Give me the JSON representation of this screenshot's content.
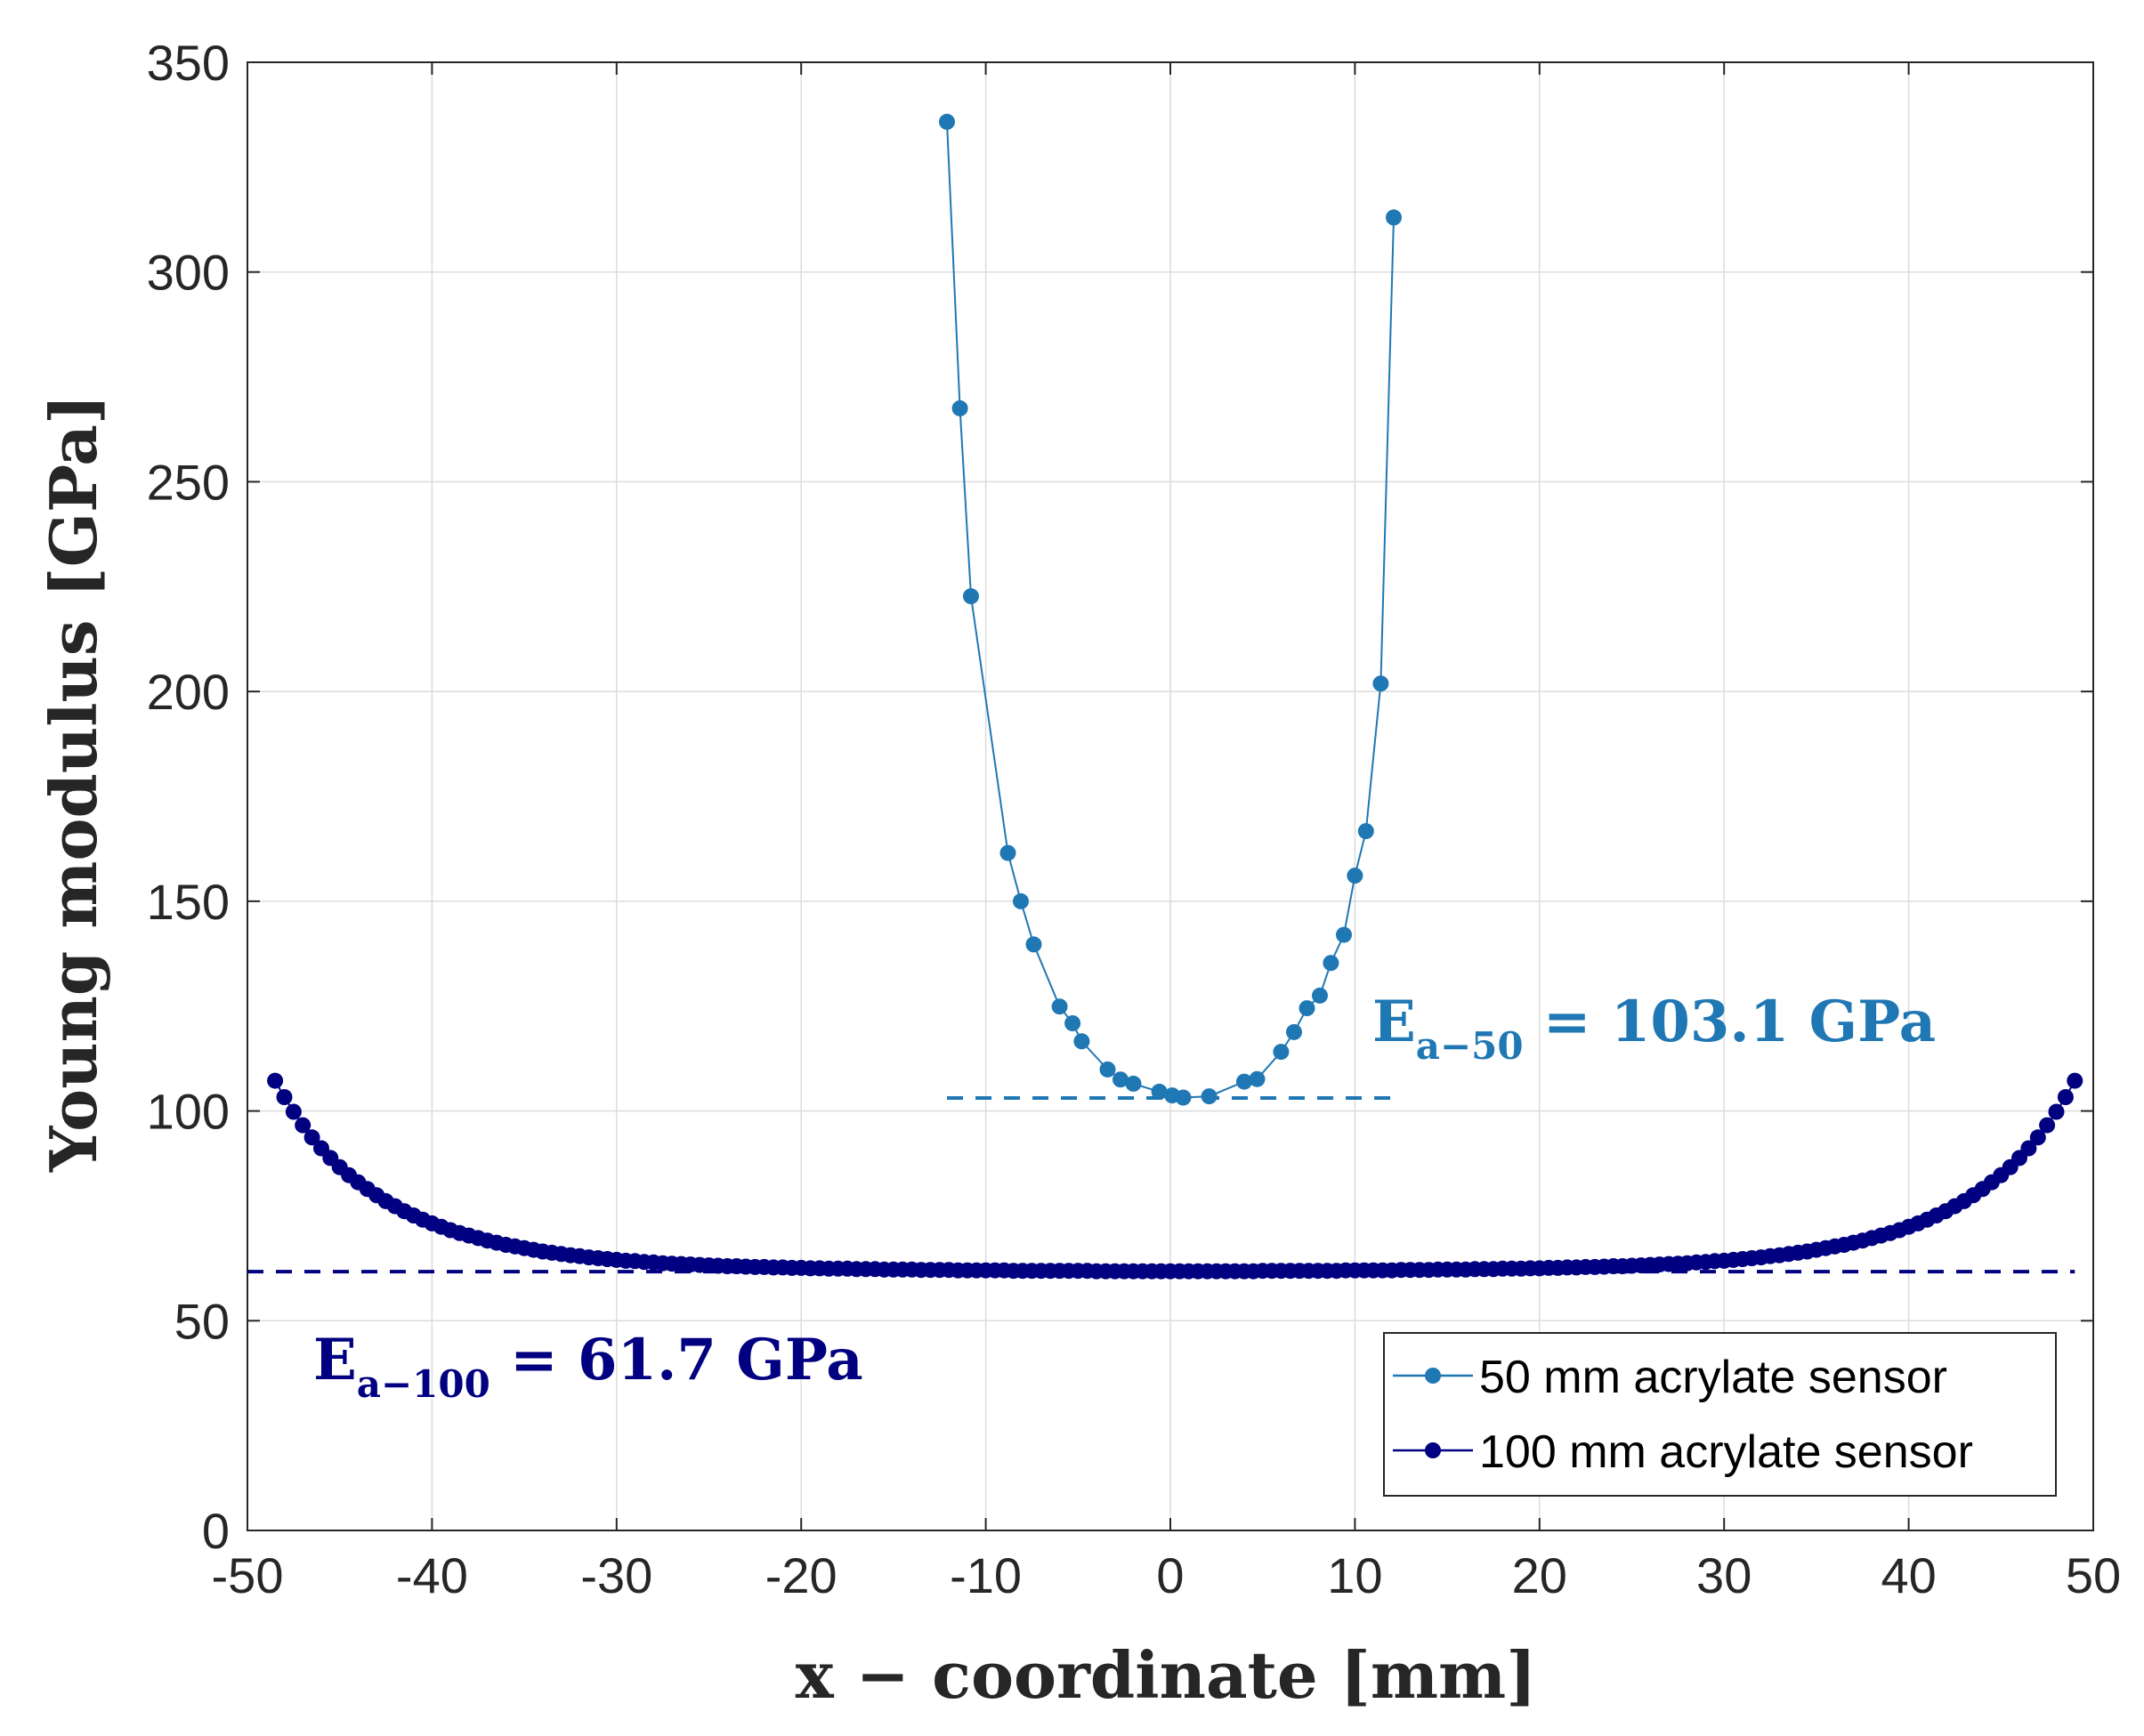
{
  "chart_data": {
    "type": "line",
    "title": "",
    "xlabel": "x − coordinate [mm]",
    "ylabel": "Young modulus [GPa]",
    "xlim": [
      -50,
      50
    ],
    "ylim": [
      0,
      350
    ],
    "xticks": [
      -50,
      -40,
      -30,
      -20,
      -10,
      0,
      10,
      20,
      30,
      40,
      50
    ],
    "yticks": [
      0,
      50,
      100,
      150,
      200,
      250,
      300,
      350
    ],
    "xtick_labels": [
      "-50",
      "-40",
      "-30",
      "-20",
      "-10",
      "0",
      "10",
      "20",
      "30",
      "40",
      "50"
    ],
    "ytick_labels": [
      "0",
      "50",
      "100",
      "150",
      "200",
      "250",
      "300",
      "350"
    ],
    "grid": true,
    "legend_position": "bottom-right",
    "series": [
      {
        "name": "50 mm acrylate sensor",
        "color": "#1f77b4",
        "x": [
          -12.1,
          -11.4,
          -10.8,
          -8.8,
          -8.1,
          -7.4,
          -6.0,
          -5.3,
          -4.8,
          -3.4,
          -2.7,
          -2.0,
          -0.6,
          0.1,
          0.7,
          2.1,
          4.0,
          4.7,
          6.0,
          6.7,
          7.4,
          8.1,
          8.7,
          9.4,
          10.0,
          10.6,
          11.4,
          12.1
        ],
        "y": [
          335.8,
          267.5,
          222.7,
          161.5,
          150.0,
          139.7,
          124.9,
          120.9,
          116.6,
          109.9,
          107.5,
          106.5,
          104.6,
          103.7,
          103.2,
          103.5,
          107.0,
          107.6,
          114.1,
          118.8,
          124.5,
          127.5,
          135.3,
          142.0,
          156.1,
          166.7,
          201.9,
          313.0
        ]
      },
      {
        "name": "100 mm acrylate sensor",
        "color": "#000080",
        "x": [
          -48.5,
          -48.0,
          -47.5,
          -47.0,
          -46.5,
          -46.0,
          -45.5,
          -45.0,
          -44.5,
          -44.0,
          -43.5,
          -43.0,
          -42.5,
          -42.0,
          -41.5,
          -41.0,
          -40.5,
          -40.0,
          -39.5,
          -39.0,
          -38.5,
          -38.0,
          -37.5,
          -37.0,
          -36.5,
          -36.0,
          -35.5,
          -35.0,
          -34.5,
          -34.0,
          -33.5,
          -33.0,
          -32.5,
          -32.0,
          -31.5,
          -31.0,
          -30.5,
          -30.0,
          -29.5,
          -29.0,
          -28.5,
          -28.0,
          -27.5,
          -27.0,
          -26.5,
          -26.0,
          -25.5,
          -25.0,
          -24.5,
          -24.0,
          -23.5,
          -23.0,
          -22.5,
          -22.0,
          -21.5,
          -21.0,
          -20.5,
          -20.0,
          -19.5,
          -19.0,
          -18.5,
          -18.0,
          -17.5,
          -17.0,
          -16.5,
          -16.0,
          -15.5,
          -15.0,
          -14.5,
          -14.0,
          -13.5,
          -13.0,
          -12.5,
          -12.0,
          -11.5,
          -11.0,
          -10.5,
          -10.0,
          -9.5,
          -9.0,
          -8.5,
          -8.0,
          -7.5,
          -7.0,
          -6.5,
          -6.0,
          -5.5,
          -5.0,
          -4.5,
          -4.0,
          -3.5,
          -3.0,
          -2.5,
          -2.0,
          -1.5,
          -1.0,
          -0.5,
          0.0,
          0.5,
          1.0,
          1.5,
          2.0,
          2.5,
          3.0,
          3.5,
          4.0,
          4.5,
          5.0,
          5.5,
          6.0,
          6.5,
          7.0,
          7.5,
          8.0,
          8.5,
          9.0,
          9.5,
          10.0,
          10.5,
          11.0,
          11.5,
          12.0,
          12.5,
          13.0,
          13.5,
          14.0,
          14.5,
          15.0,
          15.5,
          16.0,
          16.5,
          17.0,
          17.5,
          18.0,
          18.5,
          19.0,
          19.5,
          20.0,
          20.5,
          21.0,
          21.5,
          22.0,
          22.5,
          23.0,
          23.5,
          24.0,
          24.5,
          25.0,
          25.5,
          26.0,
          26.5,
          27.0,
          27.5,
          28.0,
          28.5,
          29.0,
          29.5,
          30.0,
          30.5,
          31.0,
          31.5,
          32.0,
          32.5,
          33.0,
          33.5,
          34.0,
          34.5,
          35.0,
          35.5,
          36.0,
          36.5,
          37.0,
          37.5,
          38.0,
          38.5,
          39.0,
          39.5,
          40.0,
          40.5,
          41.0,
          41.5,
          42.0,
          42.5,
          43.0,
          43.5,
          44.0,
          44.5,
          45.0,
          45.5,
          46.0,
          46.5,
          47.0,
          47.5,
          48.0,
          48.5,
          49.0
        ],
        "y": [
          107.2,
          103.3,
          99.8,
          96.6,
          93.7,
          91.1,
          88.8,
          86.6,
          84.7,
          83.0,
          81.4,
          79.9,
          78.5,
          77.3,
          76.1,
          75.1,
          74.1,
          73.2,
          72.4,
          71.6,
          70.9,
          70.3,
          69.7,
          69.1,
          68.6,
          68.1,
          67.7,
          67.3,
          66.9,
          66.5,
          66.2,
          65.9,
          65.6,
          65.4,
          65.1,
          64.9,
          64.7,
          64.5,
          64.3,
          64.2,
          64.0,
          63.9,
          63.7,
          63.6,
          63.5,
          63.4,
          63.3,
          63.2,
          63.1,
          63.0,
          63.0,
          62.9,
          62.8,
          62.8,
          62.7,
          62.7,
          62.6,
          62.6,
          62.5,
          62.5,
          62.4,
          62.4,
          62.4,
          62.3,
          62.3,
          62.3,
          62.2,
          62.2,
          62.2,
          62.2,
          62.1,
          62.1,
          62.1,
          62.1,
          62.0,
          62.0,
          62.0,
          62.0,
          62.0,
          62.0,
          61.9,
          61.9,
          61.9,
          61.9,
          61.9,
          61.9,
          61.9,
          61.9,
          61.9,
          61.8,
          61.8,
          61.8,
          61.8,
          61.8,
          61.8,
          61.8,
          61.8,
          61.8,
          61.8,
          61.8,
          61.8,
          61.8,
          61.8,
          61.8,
          61.8,
          61.8,
          61.8,
          61.9,
          61.9,
          61.9,
          61.9,
          61.9,
          61.9,
          61.9,
          61.9,
          61.9,
          62.0,
          62.0,
          62.0,
          62.0,
          62.0,
          62.0,
          62.1,
          62.1,
          62.1,
          62.1,
          62.2,
          62.2,
          62.2,
          62.2,
          62.3,
          62.3,
          62.3,
          62.4,
          62.4,
          62.4,
          62.5,
          62.5,
          62.6,
          62.6,
          62.7,
          62.7,
          62.8,
          62.8,
          62.9,
          63.0,
          63.0,
          63.1,
          63.2,
          63.3,
          63.4,
          63.5,
          63.6,
          63.7,
          63.9,
          64.0,
          64.2,
          64.3,
          64.5,
          64.7,
          64.9,
          65.1,
          65.4,
          65.6,
          65.9,
          66.2,
          66.5,
          66.9,
          67.3,
          67.7,
          68.1,
          68.6,
          69.1,
          69.7,
          70.3,
          70.9,
          71.6,
          72.4,
          73.2,
          74.1,
          75.1,
          76.1,
          77.3,
          78.5,
          79.9,
          81.4,
          83.0,
          84.7,
          86.6,
          88.8,
          91.1,
          93.7,
          96.6,
          99.8,
          103.3,
          107.2
        ]
      }
    ],
    "reference_lines": [
      {
        "name": "E_a-50 mean",
        "y": 103.1,
        "x_range": [
          -12.1,
          12.1
        ],
        "color": "#1f77b4"
      },
      {
        "name": "E_a-100 mean",
        "y": 61.7,
        "x_range": [
          -50,
          49
        ],
        "color": "#000080"
      }
    ],
    "annotations": {
      "a50": {
        "base": "E",
        "sub": "a−50",
        "rest": " = 103.1 GPa",
        "color": "#1f77b4"
      },
      "a100": {
        "base": "E",
        "sub": "a−100",
        "rest": " = 61.7 GPa",
        "color": "#000080"
      }
    }
  }
}
